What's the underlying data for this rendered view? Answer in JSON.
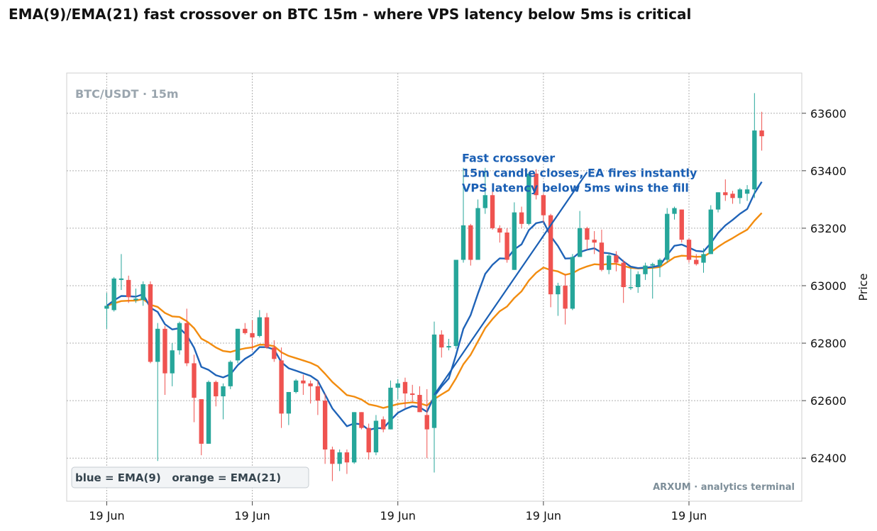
{
  "chart_data": {
    "type": "candlestick",
    "title": "EMA(9)/EMA(21) fast crossover on BTC 15m - where VPS latency below 5ms is critical",
    "symbol_label": "BTC/USDT · 15m",
    "ylabel": "Price",
    "ylim": [
      62250,
      63740
    ],
    "yticks": [
      62400,
      62600,
      62800,
      63000,
      63200,
      63400,
      63600
    ],
    "ytick_labels": [
      "62400",
      "62600",
      "62800",
      "63000",
      "63200",
      "63400",
      "63600"
    ],
    "xticks": [
      0,
      20,
      40,
      60,
      80
    ],
    "xtick_labels": [
      "19 Jun",
      "19 Jun",
      "19 Jun",
      "19 Jun",
      "19 Jun"
    ],
    "xlim": [
      -5.5,
      95.5
    ],
    "grid": true,
    "colors": {
      "up": "#26a69a",
      "down": "#ef5350",
      "ema_fast": "#1f63b8",
      "ema_slow": "#f28c0f",
      "annotation": "#1a5fb4"
    },
    "candles": [
      {
        "o": 62920,
        "h": 62975,
        "l": 62850,
        "c": 62930
      },
      {
        "o": 62915,
        "h": 63030,
        "l": 62910,
        "c": 63025
      },
      {
        "o": 63020,
        "h": 63110,
        "l": 62985,
        "c": 63025
      },
      {
        "o": 63020,
        "h": 63035,
        "l": 62940,
        "c": 62960
      },
      {
        "o": 62950,
        "h": 62990,
        "l": 62940,
        "c": 62955
      },
      {
        "o": 62950,
        "h": 63015,
        "l": 62930,
        "c": 63005
      },
      {
        "o": 63005,
        "h": 63015,
        "l": 62730,
        "c": 62735
      },
      {
        "o": 62735,
        "h": 62870,
        "l": 62390,
        "c": 62850
      },
      {
        "o": 62850,
        "h": 62860,
        "l": 62620,
        "c": 62695
      },
      {
        "o": 62695,
        "h": 62800,
        "l": 62650,
        "c": 62775
      },
      {
        "o": 62775,
        "h": 62875,
        "l": 62760,
        "c": 62870
      },
      {
        "o": 62870,
        "h": 62920,
        "l": 62720,
        "c": 62730
      },
      {
        "o": 62730,
        "h": 62760,
        "l": 62525,
        "c": 62610
      },
      {
        "o": 62605,
        "h": 62605,
        "l": 62410,
        "c": 62450
      },
      {
        "o": 62450,
        "h": 62670,
        "l": 62450,
        "c": 62665
      },
      {
        "o": 62665,
        "h": 62670,
        "l": 62580,
        "c": 62615
      },
      {
        "o": 62615,
        "h": 62660,
        "l": 62535,
        "c": 62650
      },
      {
        "o": 62650,
        "h": 62740,
        "l": 62640,
        "c": 62735
      },
      {
        "o": 62740,
        "h": 62850,
        "l": 62730,
        "c": 62850
      },
      {
        "o": 62850,
        "h": 62870,
        "l": 62830,
        "c": 62835
      },
      {
        "o": 62835,
        "h": 62880,
        "l": 62775,
        "c": 62820
      },
      {
        "o": 62825,
        "h": 62915,
        "l": 62820,
        "c": 62890
      },
      {
        "o": 62890,
        "h": 62905,
        "l": 62780,
        "c": 62785
      },
      {
        "o": 62785,
        "h": 62810,
        "l": 62735,
        "c": 62745
      },
      {
        "o": 62740,
        "h": 62785,
        "l": 62505,
        "c": 62555
      },
      {
        "o": 62555,
        "h": 62630,
        "l": 62515,
        "c": 62630
      },
      {
        "o": 62630,
        "h": 62675,
        "l": 62625,
        "c": 62670
      },
      {
        "o": 62670,
        "h": 62690,
        "l": 62620,
        "c": 62660
      },
      {
        "o": 62660,
        "h": 62670,
        "l": 62590,
        "c": 62650
      },
      {
        "o": 62650,
        "h": 62670,
        "l": 62550,
        "c": 62600
      },
      {
        "o": 62600,
        "h": 62625,
        "l": 62380,
        "c": 62430
      },
      {
        "o": 62430,
        "h": 62440,
        "l": 62320,
        "c": 62380
      },
      {
        "o": 62380,
        "h": 62430,
        "l": 62355,
        "c": 62420
      },
      {
        "o": 62420,
        "h": 62430,
        "l": 62345,
        "c": 62385
      },
      {
        "o": 62385,
        "h": 62560,
        "l": 62380,
        "c": 62560
      },
      {
        "o": 62560,
        "h": 62560,
        "l": 62500,
        "c": 62505
      },
      {
        "o": 62505,
        "h": 62520,
        "l": 62395,
        "c": 62420
      },
      {
        "o": 62420,
        "h": 62550,
        "l": 62410,
        "c": 62530
      },
      {
        "o": 62535,
        "h": 62545,
        "l": 62490,
        "c": 62500
      },
      {
        "o": 62500,
        "h": 62670,
        "l": 62500,
        "c": 62645
      },
      {
        "o": 62645,
        "h": 62675,
        "l": 62605,
        "c": 62660
      },
      {
        "o": 62665,
        "h": 62680,
        "l": 62575,
        "c": 62625
      },
      {
        "o": 62625,
        "h": 62655,
        "l": 62595,
        "c": 62620
      },
      {
        "o": 62620,
        "h": 62650,
        "l": 62560,
        "c": 62560
      },
      {
        "o": 62550,
        "h": 62640,
        "l": 62400,
        "c": 62500
      },
      {
        "o": 62505,
        "h": 62875,
        "l": 62350,
        "c": 62830
      },
      {
        "o": 62830,
        "h": 62845,
        "l": 62750,
        "c": 62785
      },
      {
        "o": 62785,
        "h": 62815,
        "l": 62775,
        "c": 62790
      },
      {
        "o": 62790,
        "h": 63080,
        "l": 62780,
        "c": 63090
      },
      {
        "o": 63090,
        "h": 63410,
        "l": 63080,
        "c": 63210
      },
      {
        "o": 63210,
        "h": 63215,
        "l": 63070,
        "c": 63090
      },
      {
        "o": 63090,
        "h": 63300,
        "l": 63090,
        "c": 63270
      },
      {
        "o": 63270,
        "h": 63410,
        "l": 63250,
        "c": 63315
      },
      {
        "o": 63315,
        "h": 63340,
        "l": 63195,
        "c": 63200
      },
      {
        "o": 63200,
        "h": 63210,
        "l": 63150,
        "c": 63185
      },
      {
        "o": 63185,
        "h": 63200,
        "l": 63080,
        "c": 63090
      },
      {
        "o": 63055,
        "h": 63290,
        "l": 63055,
        "c": 63255
      },
      {
        "o": 63255,
        "h": 63275,
        "l": 63200,
        "c": 63215
      },
      {
        "o": 63215,
        "h": 63395,
        "l": 63210,
        "c": 63390
      },
      {
        "o": 63390,
        "h": 63405,
        "l": 63300,
        "c": 63315
      },
      {
        "o": 63315,
        "h": 63320,
        "l": 63220,
        "c": 63245
      },
      {
        "o": 63245,
        "h": 63250,
        "l": 62925,
        "c": 62970
      },
      {
        "o": 62970,
        "h": 63010,
        "l": 62895,
        "c": 63000
      },
      {
        "o": 63000,
        "h": 63040,
        "l": 62865,
        "c": 62920
      },
      {
        "o": 62920,
        "h": 63110,
        "l": 62915,
        "c": 63100
      },
      {
        "o": 63100,
        "h": 63260,
        "l": 63100,
        "c": 63200
      },
      {
        "o": 63200,
        "h": 63205,
        "l": 63125,
        "c": 63160
      },
      {
        "o": 63160,
        "h": 63190,
        "l": 63110,
        "c": 63150
      },
      {
        "o": 63150,
        "h": 63195,
        "l": 63050,
        "c": 63055
      },
      {
        "o": 63055,
        "h": 63115,
        "l": 63040,
        "c": 63105
      },
      {
        "o": 63105,
        "h": 63120,
        "l": 63050,
        "c": 63080
      },
      {
        "o": 63080,
        "h": 63090,
        "l": 62940,
        "c": 62995
      },
      {
        "o": 62995,
        "h": 63060,
        "l": 62985,
        "c": 62995
      },
      {
        "o": 62995,
        "h": 63050,
        "l": 62975,
        "c": 63040
      },
      {
        "o": 63040,
        "h": 63080,
        "l": 63020,
        "c": 63070
      },
      {
        "o": 63070,
        "h": 63080,
        "l": 62955,
        "c": 63075
      },
      {
        "o": 63070,
        "h": 63095,
        "l": 63030,
        "c": 63090
      },
      {
        "o": 63090,
        "h": 63270,
        "l": 63080,
        "c": 63250
      },
      {
        "o": 63250,
        "h": 63275,
        "l": 63230,
        "c": 63270
      },
      {
        "o": 63265,
        "h": 63265,
        "l": 63150,
        "c": 63160
      },
      {
        "o": 63160,
        "h": 63165,
        "l": 63080,
        "c": 63090
      },
      {
        "o": 63090,
        "h": 63110,
        "l": 63070,
        "c": 63075
      },
      {
        "o": 63080,
        "h": 63130,
        "l": 63045,
        "c": 63110
      },
      {
        "o": 63110,
        "h": 63280,
        "l": 63110,
        "c": 63265
      },
      {
        "o": 63265,
        "h": 63325,
        "l": 63255,
        "c": 63325
      },
      {
        "o": 63325,
        "h": 63370,
        "l": 63295,
        "c": 63315
      },
      {
        "o": 63320,
        "h": 63330,
        "l": 63285,
        "c": 63305
      },
      {
        "o": 63305,
        "h": 63340,
        "l": 63285,
        "c": 63335
      },
      {
        "o": 63320,
        "h": 63350,
        "l": 63295,
        "c": 63335
      },
      {
        "o": 63335,
        "h": 63670,
        "l": 63305,
        "c": 63540
      },
      {
        "o": 63540,
        "h": 63605,
        "l": 63470,
        "c": 63520
      }
    ],
    "series": [
      {
        "name": "EMA(9)",
        "indicator": "ema",
        "period": 9,
        "color": "#1f63b8"
      },
      {
        "name": "EMA(21)",
        "indicator": "ema",
        "period": 21,
        "color": "#f28c0f"
      }
    ],
    "annotation": {
      "lines": [
        "Fast crossover",
        "15m candle closes, EA fires instantly",
        "VPS latency below 5ms wins the fill"
      ],
      "arrow_from": {
        "x": 66,
        "y": 63395
      },
      "arrow_to": {
        "x": 45,
        "y": 62620
      }
    },
    "legend_text": "blue = EMA(9)   orange = EMA(21)",
    "legend_position": "bottom-left",
    "watermark": "ARXUM · analytics terminal"
  }
}
